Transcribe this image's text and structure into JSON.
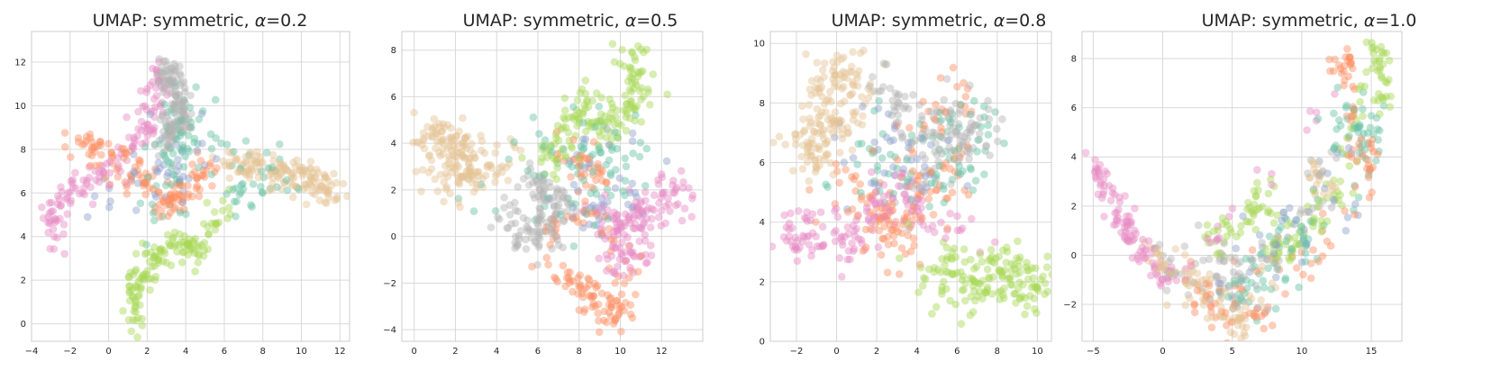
{
  "palette": {
    "teal": "#66c2a5",
    "orange": "#fc8d62",
    "blue": "#8da0cb",
    "pink": "#e78ac3",
    "green": "#a6d854",
    "sand": "#e5c494",
    "gray": "#b3b3b3"
  },
  "chart_data": [
    {
      "type": "scatter",
      "title_prefix": "UMAP: symmetric, ",
      "title_symbol": "α",
      "title_suffix": "=0.2",
      "xlim": [
        -4,
        12.5
      ],
      "ylim": [
        -0.8,
        13.4
      ],
      "xticks": [
        -4,
        -2,
        0,
        2,
        4,
        6,
        8,
        10,
        12
      ],
      "yticks": [
        0,
        2,
        4,
        6,
        8,
        10,
        12
      ],
      "grid": true,
      "clusters": [
        {
          "color": "gray",
          "n": 150,
          "points": [
            [
              2.8,
              11.8
            ],
            [
              3.4,
              10.7
            ],
            [
              3.7,
              9.4
            ],
            [
              3.0,
              8.2
            ]
          ],
          "spread": 0.35
        },
        {
          "color": "pink",
          "n": 130,
          "points": [
            [
              -2.9,
              3.6
            ],
            [
              -2.8,
              5.0
            ],
            [
              -1.9,
              6.2
            ],
            [
              -0.6,
              6.8
            ],
            [
              1.5,
              8.2
            ],
            [
              2.5,
              10.2
            ],
            [
              2.2,
              11.6
            ]
          ],
          "spread": 0.35
        },
        {
          "color": "orange",
          "n": 140,
          "points": [
            [
              -1.6,
              8.3
            ],
            [
              -0.3,
              7.7
            ],
            [
              1.0,
              7.4
            ],
            [
              2.0,
              6.4
            ],
            [
              3.2,
              5.4
            ],
            [
              4.0,
              6.3
            ],
            [
              5.2,
              7.0
            ]
          ],
          "spread": 0.4
        },
        {
          "color": "sand",
          "n": 150,
          "points": [
            [
              6.2,
              7.5
            ],
            [
              7.5,
              7.0
            ],
            [
              8.6,
              6.9
            ],
            [
              9.8,
              6.8
            ],
            [
              11.0,
              6.4
            ],
            [
              11.7,
              6.0
            ]
          ],
          "spread": 0.4
        },
        {
          "color": "green",
          "n": 140,
          "points": [
            [
              1.3,
              0.2
            ],
            [
              1.5,
              1.3
            ],
            [
              2.0,
              2.5
            ],
            [
              2.7,
              3.4
            ],
            [
              3.6,
              3.6
            ],
            [
              4.6,
              3.2
            ],
            [
              6.2,
              5.8
            ]
          ],
          "spread": 0.35
        },
        {
          "color": "teal",
          "n": 110,
          "points": [
            [
              2.8,
              5.5
            ],
            [
              3.5,
              8.0
            ],
            [
              3.9,
              10.0
            ],
            [
              7.0,
              6.2
            ],
            [
              9.0,
              6.6
            ]
          ],
          "spread": 0.7
        },
        {
          "color": "blue",
          "n": 40,
          "points": [
            [
              3.0,
              6.0
            ],
            [
              4.0,
              8.5
            ],
            [
              -1.0,
              5.0
            ]
          ],
          "spread": 0.8
        }
      ]
    },
    {
      "type": "scatter",
      "title_prefix": "UMAP: symmetric, ",
      "title_symbol": "α",
      "title_suffix": "=0.5",
      "xlim": [
        -0.6,
        14.0
      ],
      "ylim": [
        -4.5,
        8.8
      ],
      "xticks": [
        0,
        2,
        4,
        6,
        8,
        10,
        12
      ],
      "yticks": [
        -4,
        -2,
        0,
        2,
        4,
        6,
        8
      ],
      "grid": true,
      "clusters": [
        {
          "color": "sand",
          "n": 170,
          "points": [
            [
              0.4,
              4.3
            ],
            [
              1.5,
              4.6
            ],
            [
              2.8,
              3.8
            ],
            [
              1.2,
              3.0
            ],
            [
              2.8,
              2.2
            ],
            [
              4.5,
              3.6
            ],
            [
              0.8,
              2.2
            ]
          ],
          "spread": 0.45
        },
        {
          "color": "green",
          "n": 160,
          "points": [
            [
              10.3,
              8.0
            ],
            [
              10.6,
              7.0
            ],
            [
              11.2,
              6.0
            ],
            [
              10.0,
              5.5
            ],
            [
              9.0,
              4.4
            ],
            [
              8.2,
              6.3
            ],
            [
              7.0,
              4.0
            ],
            [
              6.2,
              3.0
            ]
          ],
          "spread": 0.45
        },
        {
          "color": "gray",
          "n": 130,
          "points": [
            [
              5.5,
              2.2
            ],
            [
              6.5,
              1.8
            ],
            [
              7.0,
              0.5
            ],
            [
              5.8,
              0.0
            ],
            [
              4.2,
              1.0
            ]
          ],
          "spread": 0.45
        },
        {
          "color": "pink",
          "n": 150,
          "points": [
            [
              9.0,
              0.8
            ],
            [
              10.5,
              0.3
            ],
            [
              11.7,
              1.2
            ],
            [
              12.6,
              2.0
            ],
            [
              9.5,
              -0.8
            ],
            [
              11.2,
              -1.2
            ]
          ],
          "spread": 0.55
        },
        {
          "color": "orange",
          "n": 150,
          "points": [
            [
              7.0,
              -1.5
            ],
            [
              8.0,
              -2.2
            ],
            [
              9.0,
              -2.8
            ],
            [
              9.8,
              -3.6
            ],
            [
              10.4,
              -1.5
            ],
            [
              7.5,
              3.6
            ],
            [
              9.5,
              2.6
            ],
            [
              6.0,
              -0.8
            ]
          ],
          "spread": 0.4
        },
        {
          "color": "teal",
          "n": 80,
          "points": [
            [
              7.5,
              0.5
            ],
            [
              9.0,
              3.0
            ],
            [
              10.0,
              4.5
            ],
            [
              3.0,
              2.0
            ]
          ],
          "spread": 0.9
        },
        {
          "color": "blue",
          "n": 40,
          "points": [
            [
              8.5,
              1.5
            ],
            [
              10.5,
              3.0
            ]
          ],
          "spread": 1.0
        }
      ]
    },
    {
      "type": "scatter",
      "title_prefix": "UMAP: symmetric, ",
      "title_symbol": "α",
      "title_suffix": "=0.8",
      "xlim": [
        -3.3,
        10.7
      ],
      "ylim": [
        0,
        10.4
      ],
      "xticks": [
        -2,
        0,
        2,
        4,
        6,
        8,
        10
      ],
      "yticks": [
        0,
        2,
        4,
        6,
        8,
        10
      ],
      "grid": true,
      "clusters": [
        {
          "color": "sand",
          "n": 170,
          "points": [
            [
              -0.2,
              9.5
            ],
            [
              0.5,
              9.0
            ],
            [
              -1.5,
              8.0
            ],
            [
              0.3,
              7.5
            ],
            [
              -2.2,
              6.5
            ],
            [
              -0.5,
              6.0
            ],
            [
              1.5,
              8.5
            ]
          ],
          "spread": 0.45
        },
        {
          "color": "pink",
          "n": 150,
          "points": [
            [
              -2.6,
              3.4
            ],
            [
              -1.5,
              3.6
            ],
            [
              -0.3,
              3.6
            ],
            [
              1.0,
              3.3
            ],
            [
              2.0,
              4.5
            ],
            [
              3.0,
              5.2
            ],
            [
              4.0,
              4.2
            ],
            [
              7.0,
              3.6
            ]
          ],
          "spread": 0.45
        },
        {
          "color": "green",
          "n": 160,
          "points": [
            [
              4.5,
              1.5
            ],
            [
              5.5,
              2.5
            ],
            [
              6.5,
              1.8
            ],
            [
              7.5,
              2.2
            ],
            [
              8.5,
              2.5
            ],
            [
              9.5,
              1.5
            ],
            [
              10.0,
              2.5
            ],
            [
              3.5,
              2.8
            ]
          ],
          "spread": 0.45
        },
        {
          "color": "gray",
          "n": 130,
          "points": [
            [
              2.5,
              8.8
            ],
            [
              3.5,
              7.5
            ],
            [
              4.5,
              6.5
            ],
            [
              5.5,
              7.6
            ],
            [
              6.8,
              6.8
            ],
            [
              7.5,
              7.8
            ],
            [
              3.2,
              5.0
            ]
          ],
          "spread": 0.5
        },
        {
          "color": "orange",
          "n": 140,
          "points": [
            [
              1.0,
              5.5
            ],
            [
              2.0,
              4.0
            ],
            [
              3.0,
              3.2
            ],
            [
              4.2,
              5.6
            ],
            [
              5.5,
              5.0
            ],
            [
              6.0,
              8.5
            ],
            [
              -1.0,
              4.5
            ]
          ],
          "spread": 0.6
        },
        {
          "color": "teal",
          "n": 80,
          "points": [
            [
              1.0,
              6.5
            ],
            [
              4.0,
              6.0
            ],
            [
              6.0,
              6.0
            ],
            [
              8.0,
              7.5
            ]
          ],
          "spread": 0.9
        },
        {
          "color": "blue",
          "n": 40,
          "points": [
            [
              2.0,
              6.5
            ],
            [
              5.0,
              5.5
            ]
          ],
          "spread": 1.0
        }
      ]
    },
    {
      "type": "scatter",
      "title_prefix": "UMAP: symmetric, ",
      "title_symbol": "α",
      "title_suffix": "=1.0",
      "xlim": [
        -5.8,
        17.2
      ],
      "ylim": [
        -3.5,
        9.1
      ],
      "xticks": [
        -5,
        0,
        5,
        10,
        15
      ],
      "yticks": [
        -2,
        0,
        2,
        4,
        6,
        8
      ],
      "grid": true,
      "clusters": [
        {
          "color": "pink",
          "n": 120,
          "points": [
            [
              -5.0,
              3.5
            ],
            [
              -4.0,
              2.5
            ],
            [
              -3.0,
              1.5
            ],
            [
              -2.0,
              0.5
            ],
            [
              -1.0,
              -0.3
            ],
            [
              1.0,
              -1.0
            ],
            [
              12.5,
              6.5
            ]
          ],
          "spread": 0.3
        },
        {
          "color": "sand",
          "n": 120,
          "points": [
            [
              -1.0,
              0.3
            ],
            [
              1.0,
              -0.8
            ],
            [
              3.0,
              -1.2
            ],
            [
              5.0,
              -2.8
            ],
            [
              6.0,
              -2.5
            ],
            [
              11.0,
              3.5
            ],
            [
              12.0,
              2.5
            ]
          ],
          "spread": 0.4
        },
        {
          "color": "green",
          "n": 150,
          "points": [
            [
              3.0,
              0.5
            ],
            [
              4.5,
              0.8
            ],
            [
              6.5,
              1.5
            ],
            [
              7.3,
              2.8
            ],
            [
              8.0,
              0.0
            ],
            [
              10.0,
              1.0
            ],
            [
              13.0,
              2.5
            ],
            [
              15.0,
              8.5
            ],
            [
              15.8,
              7.5
            ],
            [
              16.0,
              5.5
            ]
          ],
          "spread": 0.4
        },
        {
          "color": "orange",
          "n": 120,
          "points": [
            [
              13.5,
              8.0
            ],
            [
              12.5,
              7.5
            ],
            [
              14.5,
              4.5
            ],
            [
              15.0,
              3.0
            ],
            [
              7.5,
              -2.5
            ],
            [
              4.5,
              -2.5
            ],
            [
              2.0,
              -1.5
            ],
            [
              12.0,
              0.5
            ]
          ],
          "spread": 0.45
        },
        {
          "color": "teal",
          "n": 110,
          "points": [
            [
              12.5,
              5.0
            ],
            [
              14.0,
              6.0
            ],
            [
              15.5,
              4.0
            ],
            [
              5.0,
              -1.5
            ],
            [
              8.0,
              -1.0
            ],
            [
              11.0,
              1.5
            ]
          ],
          "spread": 0.6
        },
        {
          "color": "gray",
          "n": 80,
          "points": [
            [
              0.0,
              -0.5
            ],
            [
              4.0,
              -0.5
            ],
            [
              6.0,
              -1.0
            ],
            [
              13.0,
              4.0
            ]
          ],
          "spread": 0.6
        },
        {
          "color": "blue",
          "n": 40,
          "points": [
            [
              5.0,
              -1.0
            ],
            [
              13.5,
              3.5
            ]
          ],
          "spread": 0.8
        }
      ]
    }
  ]
}
